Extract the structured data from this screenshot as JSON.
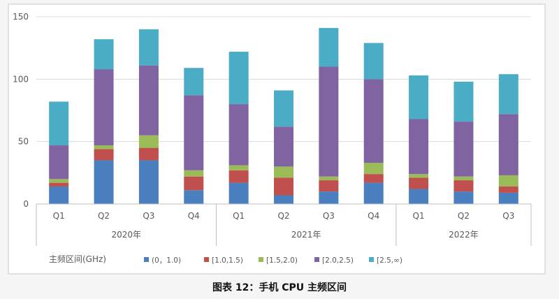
{
  "chart_data": {
    "type": "bar",
    "stacked": true,
    "caption": "图表 12：手机 CPU 主频区间",
    "legend_title": "主频区间(GHz)",
    "legend_position": "bottom",
    "grid": true,
    "ylim": [
      0,
      150
    ],
    "y_ticks": [
      "0",
      "50",
      "100",
      "150"
    ],
    "categories": [
      "Q1",
      "Q2",
      "Q3",
      "Q4",
      "Q1",
      "Q2",
      "Q3",
      "Q4",
      "Q1",
      "Q2",
      "Q3"
    ],
    "groups": [
      {
        "label": "2020年",
        "count": 4
      },
      {
        "label": "2021年",
        "count": 4
      },
      {
        "label": "2022年",
        "count": 3
      }
    ],
    "series": [
      {
        "name": "(0，1.0)",
        "color": "#4a7fc0",
        "values": [
          14,
          35,
          35,
          11,
          17,
          7,
          10,
          17,
          12,
          10,
          9
        ]
      },
      {
        "name": "[1.0,1.5)",
        "color": "#c0504d",
        "values": [
          3,
          9,
          10,
          11,
          10,
          14,
          9,
          7,
          9,
          9,
          5
        ]
      },
      {
        "name": "[1.5,2.0)",
        "color": "#9bbb59",
        "values": [
          3,
          3,
          10,
          5,
          4,
          9,
          3,
          9,
          3,
          3,
          9
        ]
      },
      {
        "name": "[2.0,2.5)",
        "color": "#8064a2",
        "values": [
          27,
          61,
          56,
          60,
          49,
          32,
          88,
          67,
          44,
          44,
          49
        ]
      },
      {
        "name": "[2.5,∞)",
        "color": "#4bacc6",
        "values": [
          35,
          24,
          29,
          22,
          42,
          29,
          31,
          29,
          35,
          32,
          32
        ]
      }
    ]
  }
}
